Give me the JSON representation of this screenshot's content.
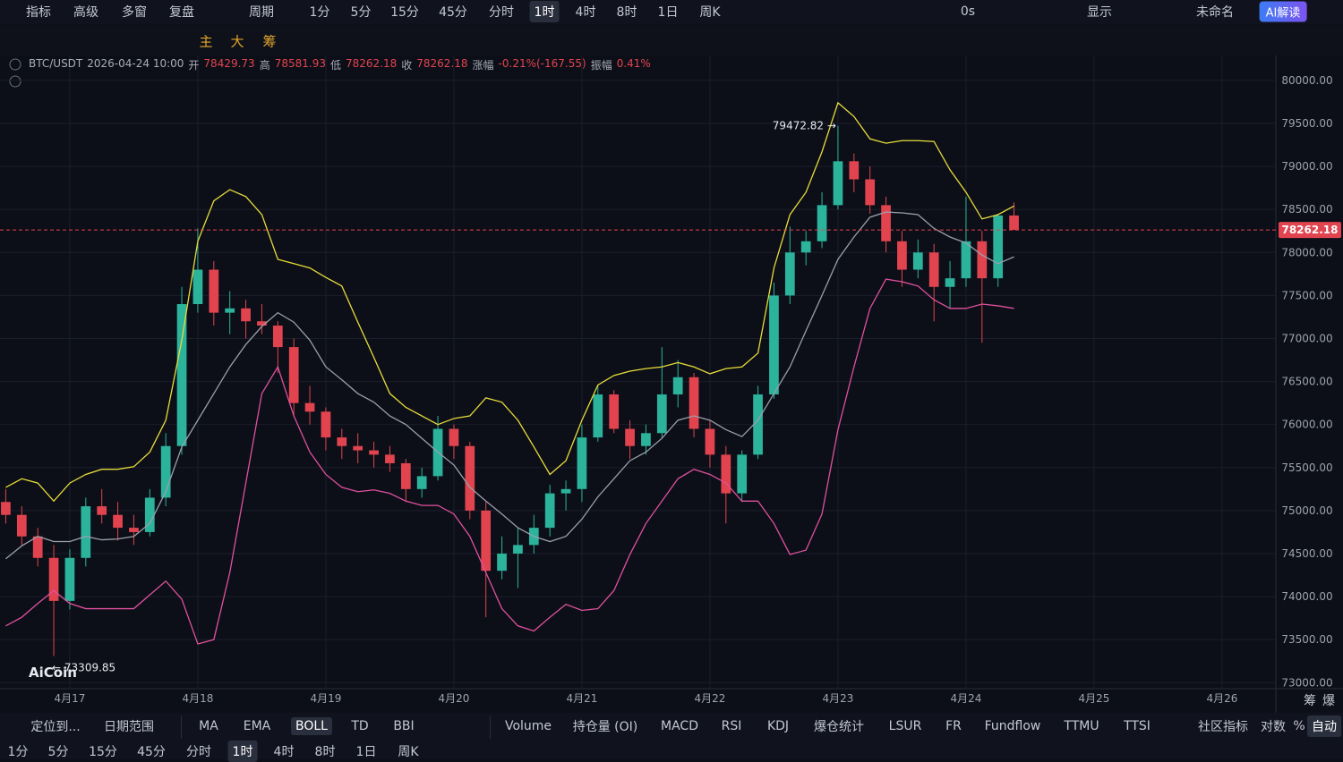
{
  "toolbar": {
    "top": [
      "指标",
      "高级",
      "多窗",
      "复盘",
      "周期",
      "1分",
      "5分",
      "15分",
      "45分",
      "分时",
      "1时",
      "4时",
      "8时",
      "1日",
      "周K"
    ],
    "top_right": [
      "0s",
      "显示",
      "未命名",
      "AI解读"
    ],
    "tools": [
      "主",
      "大",
      "筹"
    ],
    "axis_buttons": [
      "筹",
      "爆"
    ]
  },
  "header": {
    "symbol": "BTC/USDT",
    "time": "2026-04-24 10:00",
    "items": [
      {
        "label": "开",
        "value": "78429.73"
      },
      {
        "label": "高",
        "value": "78581.93"
      },
      {
        "label": "低",
        "value": "78262.18"
      },
      {
        "label": "收",
        "value": "78262.18"
      },
      {
        "label": "涨幅",
        "value": "-0.21%(-167.55)"
      },
      {
        "label": "振幅",
        "value": "0.41%"
      }
    ]
  },
  "watermark": "AiCoin",
  "chart_data": {
    "type": "candlestick",
    "up_color": "#2bb39c",
    "down_color": "#e2444f",
    "open": [
      75100,
      74950,
      74700,
      74450,
      73950,
      74450,
      75050,
      74950,
      74800,
      74750,
      75150,
      75750,
      77400,
      77800,
      77300,
      77350,
      77200,
      77150,
      76900,
      76250,
      76150,
      75850,
      75750,
      75700,
      75650,
      75550,
      75250,
      75400,
      75950,
      75750,
      75000,
      74300,
      74500,
      74600,
      74800,
      75200,
      75250,
      75850,
      76350,
      75950,
      75750,
      75900,
      76350,
      76550,
      75950,
      75650,
      75200,
      75650,
      76350,
      77500,
      78000,
      78130,
      78550,
      79060,
      78850,
      78550,
      78130,
      77800,
      78000,
      77600,
      77700,
      78130,
      77700,
      78429.73
    ],
    "high": [
      75250,
      75050,
      74800,
      74600,
      74550,
      75150,
      75250,
      75100,
      74950,
      75250,
      75900,
      77600,
      78280,
      77900,
      77550,
      77450,
      77400,
      77200,
      77000,
      76450,
      76200,
      75950,
      75900,
      75800,
      75750,
      75600,
      75500,
      76100,
      76000,
      75800,
      75100,
      74700,
      74800,
      74950,
      75300,
      75350,
      76000,
      76450,
      76400,
      76050,
      76000,
      76900,
      76750,
      76600,
      76050,
      75750,
      75700,
      76450,
      77650,
      78300,
      78250,
      78700,
      79472.82,
      79150,
      79000,
      78650,
      78250,
      78150,
      78100,
      77900,
      78650,
      78250,
      78450,
      78581.93
    ],
    "low": [
      74850,
      74600,
      74350,
      73309.85,
      73850,
      74350,
      74850,
      74650,
      74600,
      74700,
      75050,
      75650,
      77300,
      77150,
      77050,
      77000,
      77050,
      76600,
      76100,
      76000,
      75700,
      75600,
      75550,
      75500,
      75450,
      75100,
      75150,
      75350,
      75600,
      74900,
      73760,
      74200,
      74100,
      74500,
      74700,
      75000,
      75100,
      75800,
      75900,
      75600,
      75650,
      75850,
      76200,
      75850,
      75500,
      74850,
      75100,
      75600,
      76300,
      77400,
      77850,
      78050,
      78500,
      78700,
      78450,
      78000,
      77600,
      77700,
      77200,
      77350,
      77600,
      76950,
      77600,
      78262.18
    ],
    "close": [
      74950,
      74700,
      74450,
      73950,
      74450,
      75050,
      74950,
      74800,
      74750,
      75150,
      75750,
      77400,
      77800,
      77300,
      77350,
      77200,
      77150,
      76900,
      76250,
      76150,
      75850,
      75750,
      75700,
      75650,
      75550,
      75250,
      75400,
      75950,
      75750,
      75000,
      74300,
      74500,
      74600,
      74800,
      75200,
      75250,
      75850,
      76350,
      75950,
      75750,
      75900,
      76350,
      76550,
      75950,
      75650,
      75200,
      75650,
      76350,
      77500,
      78000,
      78130,
      78550,
      79060,
      78850,
      78550,
      78130,
      77800,
      78000,
      77600,
      77700,
      78130,
      77700,
      78430,
      78262.18
    ],
    "bands": [
      {
        "color": "#e8dc3a",
        "values": [
          75270,
          75370,
          75320,
          75110,
          75320,
          75420,
          75480,
          75480,
          75510,
          75680,
          76050,
          76980,
          78130,
          78600,
          78730,
          78650,
          78440,
          77920,
          77870,
          77820,
          77710,
          77610,
          77190,
          76780,
          76360,
          76200,
          76100,
          76000,
          76070,
          76100,
          76310,
          76260,
          76050,
          75740,
          75420,
          75580,
          76050,
          76460,
          76570,
          76620,
          76650,
          76670,
          76720,
          76670,
          76590,
          76650,
          76670,
          76830,
          77820,
          78440,
          78700,
          79170,
          79740,
          79580,
          79320,
          79270,
          79300,
          79300,
          79290,
          78960,
          78700,
          78390,
          78440,
          78540
        ]
      },
      {
        "color": "#9a9fab",
        "values": [
          74440,
          74590,
          74700,
          74640,
          74640,
          74700,
          74660,
          74670,
          74700,
          74850,
          75220,
          75740,
          76050,
          76360,
          76670,
          76930,
          77140,
          77300,
          77190,
          76980,
          76670,
          76520,
          76360,
          76260,
          76100,
          76000,
          75840,
          75680,
          75530,
          75270,
          75110,
          74960,
          74800,
          74700,
          74640,
          74700,
          74900,
          75160,
          75370,
          75580,
          75680,
          75840,
          76050,
          76100,
          76050,
          75940,
          75860,
          76050,
          76360,
          76670,
          77090,
          77500,
          77920,
          78180,
          78410,
          78470,
          78460,
          78440,
          78280,
          78180,
          78110,
          77970,
          77870,
          77950
        ]
      },
      {
        "color": "#e0509e",
        "values": [
          73660,
          73760,
          73920,
          74070,
          73920,
          73860,
          73860,
          73860,
          73860,
          74020,
          74180,
          73970,
          73450,
          73500,
          74280,
          75320,
          76360,
          76670,
          76100,
          75680,
          75420,
          75270,
          75220,
          75240,
          75200,
          75110,
          75060,
          75060,
          74960,
          74700,
          74280,
          73860,
          73660,
          73600,
          73760,
          73910,
          73840,
          73860,
          74070,
          74490,
          74850,
          75110,
          75370,
          75480,
          75420,
          75320,
          75110,
          75110,
          74850,
          74490,
          74540,
          74960,
          75940,
          76670,
          77350,
          77690,
          77660,
          77610,
          77450,
          77350,
          77350,
          77400,
          77380,
          77350
        ]
      }
    ],
    "last_price": 78262.18,
    "annotations": [
      {
        "value": 79472.82,
        "label": "79472.82 →"
      },
      {
        "value": 73309.85,
        "label": "← 73309.85"
      }
    ],
    "xlim": [
      -0.36,
      79.36
    ],
    "xticks": [
      {
        "value": 4,
        "label": "4月17"
      },
      {
        "value": 12,
        "label": "4月18"
      },
      {
        "value": 20,
        "label": "4月19"
      },
      {
        "value": 28,
        "label": "4月20"
      },
      {
        "value": 36,
        "label": "4月21"
      },
      {
        "value": 44,
        "label": "4月22"
      },
      {
        "value": 52,
        "label": "4月23"
      },
      {
        "value": 60,
        "label": "4月24"
      },
      {
        "value": 68,
        "label": "4月25"
      },
      {
        "value": 76,
        "label": "4月26"
      }
    ],
    "ylim": [
      72930,
      80290
    ],
    "yticks": [
      {
        "value": 73000,
        "label": "73000.00"
      },
      {
        "value": 73500,
        "label": "73500.00"
      },
      {
        "value": 74000,
        "label": "74000.00"
      },
      {
        "value": 74500,
        "label": "74500.00"
      },
      {
        "value": 75000,
        "label": "75000.00"
      },
      {
        "value": 75500,
        "label": "75500.00"
      },
      {
        "value": 76000,
        "label": "76000.00"
      },
      {
        "value": 76500,
        "label": "76500.00"
      },
      {
        "value": 77000,
        "label": "77000.00"
      },
      {
        "value": 77500,
        "label": "77500.00"
      },
      {
        "value": 78000,
        "label": "78000.00"
      },
      {
        "value": 78500,
        "label": "78500.00"
      },
      {
        "value": 79000,
        "label": "79000.00"
      },
      {
        "value": 79500,
        "label": "79500.00"
      },
      {
        "value": 80000,
        "label": "80000.00"
      }
    ],
    "grid": true
  },
  "footer": {
    "left": [
      "定位到...",
      "日期范围"
    ],
    "main_indicators": [
      "MA",
      "EMA",
      "BOLL",
      "TD",
      "BBI"
    ],
    "sub_indicators": [
      "Volume",
      "持仓量 (OI)",
      "MACD",
      "RSI",
      "KDJ",
      "爆仓统计",
      "LSUR",
      "FR",
      "Fundflow",
      "TTMU",
      "TTSI",
      "社区指标"
    ],
    "scale": [
      "对数",
      "%",
      "自动"
    ],
    "periods": [
      "1分",
      "5分",
      "15分",
      "45分",
      "分时",
      "1时",
      "4时",
      "8时",
      "1日",
      "周K"
    ]
  }
}
